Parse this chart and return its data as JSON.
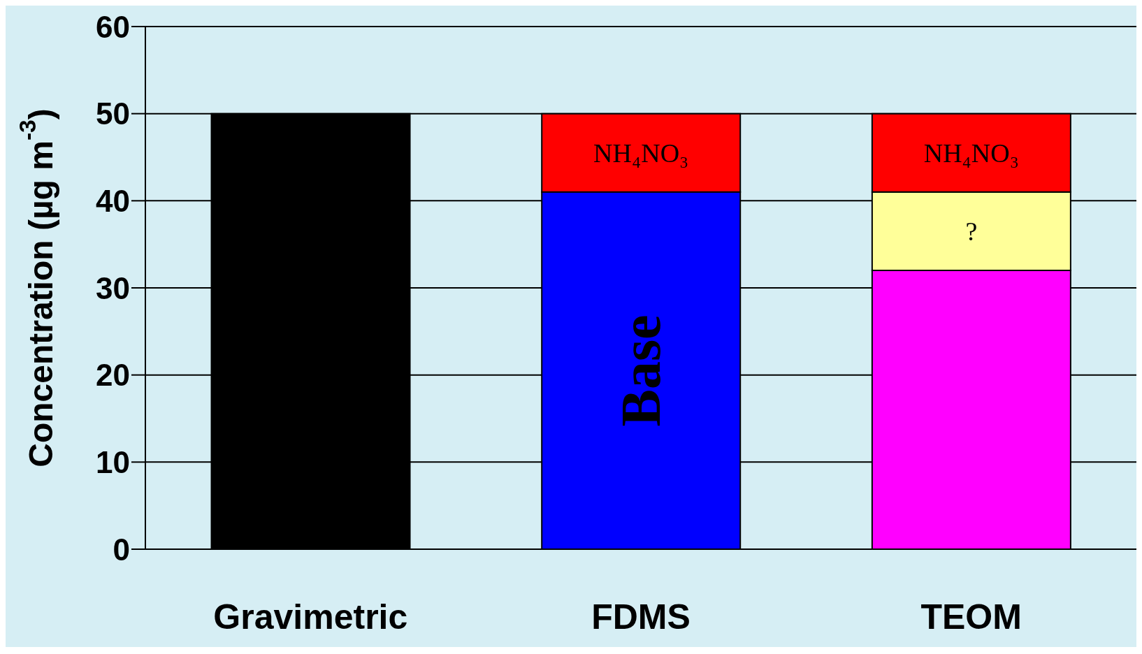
{
  "chart_data": {
    "type": "bar",
    "stacked": true,
    "ylabel": "Concentration (µg m$^{-3}$)",
    "categories": [
      "Gravimetric",
      "FDMS",
      "TEOM"
    ],
    "series": [
      {
        "color": "#000000",
        "values": [
          50,
          null,
          null
        ]
      },
      {
        "name": "Base",
        "color": "#0000ff",
        "values": [
          null,
          41,
          null
        ]
      },
      {
        "color": "#ff00ff",
        "values": [
          null,
          null,
          32
        ]
      },
      {
        "name": "?",
        "color": "#ffff99",
        "values": [
          null,
          null,
          9
        ]
      },
      {
        "name": "NH₄NO₃",
        "color": "#ff0000",
        "values": [
          null,
          9,
          9
        ]
      }
    ],
    "ylim": [
      0,
      60
    ],
    "yticks": [
      0,
      10,
      20,
      30,
      40,
      50,
      60
    ],
    "grid": "y",
    "legend": false
  }
}
